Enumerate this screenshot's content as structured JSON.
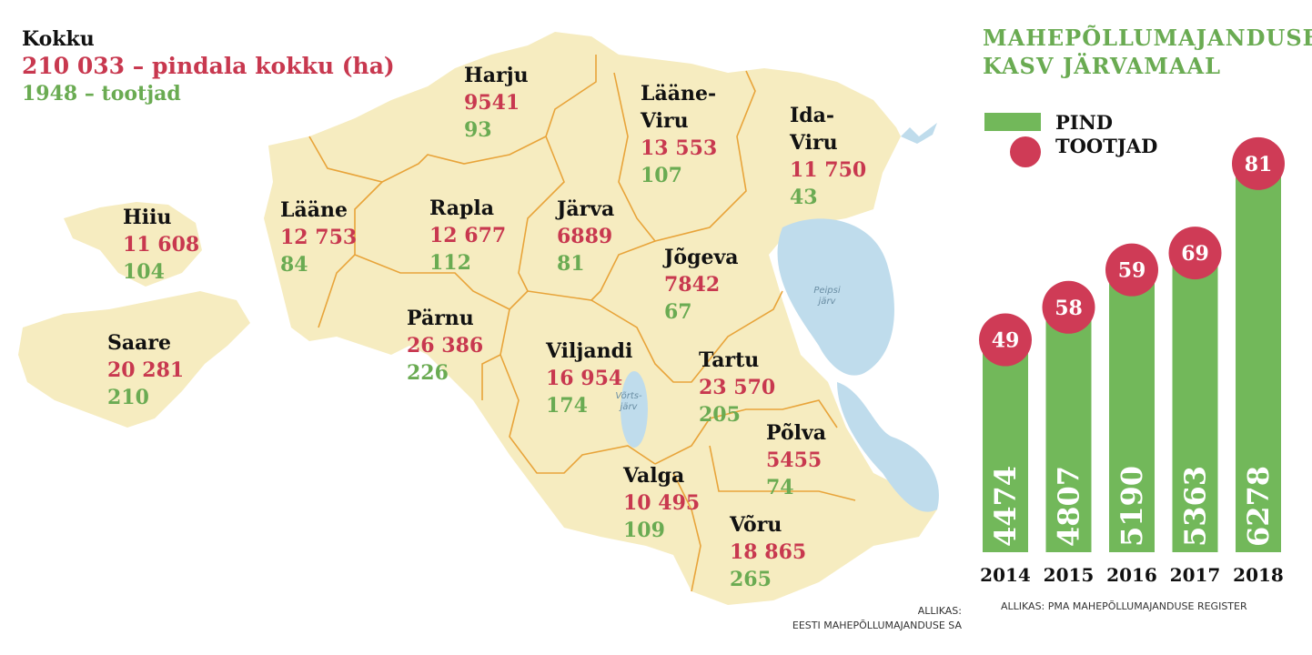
{
  "map": {
    "summary": {
      "title": "Kokku",
      "area": "210 033 – pindala kokku (ha)",
      "producers": "1948 – tootjad"
    },
    "counties": [
      {
        "name": "Harju",
        "area": "9541",
        "producers": "93"
      },
      {
        "name": "Lääne-Viru",
        "area": "13 553",
        "producers": "107"
      },
      {
        "name": "Ida-Viru",
        "area": "11 750",
        "producers": "43"
      },
      {
        "name": "Hiiu",
        "area": "11 608",
        "producers": "104"
      },
      {
        "name": "Lääne",
        "area": "12 753",
        "producers": "84"
      },
      {
        "name": "Rapla",
        "area": "12 677",
        "producers": "112"
      },
      {
        "name": "Järva",
        "area": "6889",
        "producers": "81"
      },
      {
        "name": "Jõgeva",
        "area": "7842",
        "producers": "67"
      },
      {
        "name": "Saare",
        "area": "20 281",
        "producers": "210"
      },
      {
        "name": "Pärnu",
        "area": "26 386",
        "producers": "226"
      },
      {
        "name": "Viljandi",
        "area": "16 954",
        "producers": "174"
      },
      {
        "name": "Tartu",
        "area": "23 570",
        "producers": "205"
      },
      {
        "name": "Põlva",
        "area": "5455",
        "producers": "74"
      },
      {
        "name": "Valga",
        "area": "10 495",
        "producers": "109"
      },
      {
        "name": "Võru",
        "area": "18 865",
        "producers": "265"
      }
    ],
    "lakes": [
      "Peipsi järv",
      "Võrts-järv"
    ],
    "source": [
      "ALLIKAS:",
      "EESTI MAHEPÕLLUMAJANDUSE SA"
    ]
  },
  "chart_data": {
    "type": "bar",
    "title": [
      "MAHEPÕLLUMAJANDUSE",
      "KASV JÄRVAMAAL"
    ],
    "categories": [
      "2014",
      "2015",
      "2016",
      "2017",
      "2018"
    ],
    "series": [
      {
        "name": "PIND",
        "color": "#72b85a",
        "values": [
          4474,
          4807,
          5190,
          5363,
          6278
        ]
      },
      {
        "name": "TOOTJAD",
        "color": "#cf3b56",
        "values": [
          49,
          58,
          59,
          69,
          81
        ]
      }
    ],
    "ylim": [
      2300,
      6500
    ],
    "source": "ALLIKAS: PMA MAHEPÕLLUMAJANDUSE REGISTER"
  }
}
